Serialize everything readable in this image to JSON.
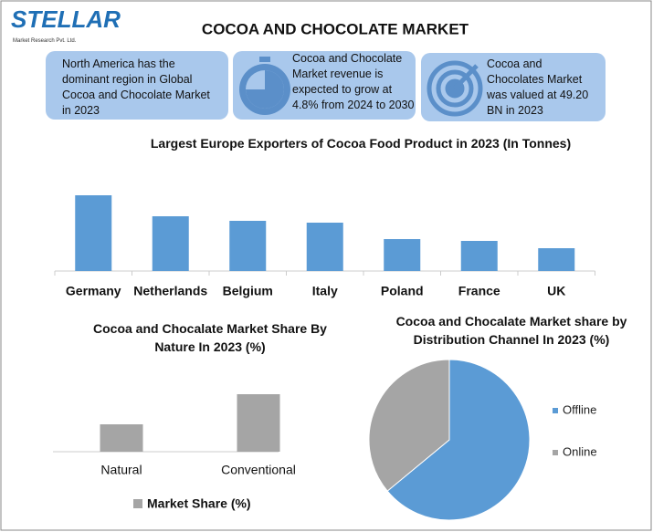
{
  "header": {
    "logo": "STELLAR",
    "logo_sub": "Market Research Pvt. Ltd.",
    "title": "COCOA AND CHOCOLATE MARKET"
  },
  "cards": [
    {
      "text": "North America has the dominant region in Global Cocoa and Chocolate Market in 2023"
    },
    {
      "text": "Cocoa and Chocolate Market revenue is expected to grow at 4.8% from 2024 to 2030"
    },
    {
      "text": "Cocoa and Chocolates Market was valued at 49.20 BN in 2023"
    }
  ],
  "chart_data": [
    {
      "type": "bar",
      "title": "Largest Europe Exporters of Cocoa Food Product in 2023 (In Tonnes)",
      "categories": [
        "Germany",
        "Netherlands",
        "Belgium",
        "Italy",
        "Poland",
        "France",
        "UK"
      ],
      "values": [
        83,
        60,
        55,
        53,
        35,
        33,
        25
      ],
      "color": "#5b9bd5"
    },
    {
      "type": "bar",
      "title": "Cocoa and Chocalate Market Share By Nature In 2023 (%)",
      "categories": [
        "Natural",
        "Conventional"
      ],
      "series": [
        {
          "name": "Market Share (%)",
          "color": "#a5a5a5",
          "values": [
            30,
            63
          ]
        }
      ]
    },
    {
      "type": "pie",
      "title": "Cocoa and Chocalate Market share by Distribution Channel In 2023 (%)",
      "categories": [
        "Offline",
        "Online"
      ],
      "values": [
        64,
        36
      ],
      "colors": [
        "#5b9bd5",
        "#a5a5a5"
      ]
    }
  ]
}
